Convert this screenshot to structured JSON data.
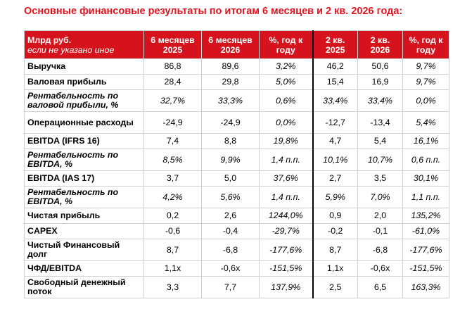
{
  "title": "Основные финансовые результаты по итогам 6 месяцев и 2 кв. 2026 года:",
  "header": {
    "label_main": "Млрд руб.",
    "label_sub": "если не указано иное",
    "columns": [
      "6 месяцев 2025",
      "6 месяцев 2026",
      "%, год к году",
      "2 кв. 2025",
      "2 кв. 2026",
      "%, год к году"
    ]
  },
  "rows": [
    {
      "label": "Выручка",
      "italic": false,
      "cells": [
        "86,8",
        "89,6",
        "3,2%",
        "46,2",
        "50,6",
        "9,7%"
      ]
    },
    {
      "label": "Валовая прибыль",
      "italic": false,
      "cells": [
        "28,4",
        "29,8",
        "5,0%",
        "15,4",
        "16,9",
        "9,7%"
      ]
    },
    {
      "label": "Рентабельность по валовой прибыли, %",
      "italic": true,
      "cells": [
        "32,7%",
        "33,3%",
        "0,6%",
        "33,4%",
        "33,4%",
        "0,0%"
      ]
    },
    {
      "label": "Операционные расходы",
      "italic": false,
      "cells": [
        "-24,9",
        "-24,9",
        "0,0%",
        "-12,7",
        "-13,4",
        "5,4%"
      ]
    },
    {
      "label": "EBITDA (IFRS 16)",
      "italic": false,
      "cells": [
        "7,4",
        "8,8",
        "19,8%",
        "4,7",
        "5,4",
        "16,1%"
      ]
    },
    {
      "label": "Рентабельность по EBITDA, %",
      "italic": true,
      "cells": [
        "8,5%",
        "9,9%",
        "1,4 п.п.",
        "10,1%",
        "10,7%",
        "0,6 п.п."
      ]
    },
    {
      "label": "EBITDA (IAS 17)",
      "italic": false,
      "cells": [
        "3,7",
        "5,0",
        "37,6%",
        "2,7",
        "3,5",
        "30,1%"
      ]
    },
    {
      "label": "Рентабельность по EBITDA, %",
      "italic": true,
      "cells": [
        "4,2%",
        "5,6%",
        "1,4 п.п.",
        "5,9%",
        "7,0%",
        "1,1 п.п."
      ]
    },
    {
      "label": "Чистая прибыль",
      "italic": false,
      "cells": [
        "0,2",
        "2,6",
        "1244,0%",
        "0,9",
        "2,0",
        "135,2%"
      ]
    },
    {
      "label": "CAPEX",
      "italic": false,
      "cells": [
        "-0,6",
        "-0,4",
        "-29,7%",
        "-0,2",
        "-0,1",
        "-61,0%"
      ]
    },
    {
      "label": "Чистый Финансовый долг",
      "italic": false,
      "cells": [
        "8,7",
        "-6,8",
        "-177,6%",
        "8,7",
        "-6,8",
        "-177,6%"
      ]
    },
    {
      "label": "ЧФД/EBITDA",
      "italic": false,
      "cells": [
        "1,1x",
        "-0,6x",
        "-151,5%",
        "1,1x",
        "-0,6x",
        "-151,5%"
      ]
    },
    {
      "label": "Свободный денежный поток",
      "italic": false,
      "cells": [
        "3,3",
        "7,7",
        "137,9%",
        "2,5",
        "6,5",
        "163,3%"
      ]
    }
  ]
}
